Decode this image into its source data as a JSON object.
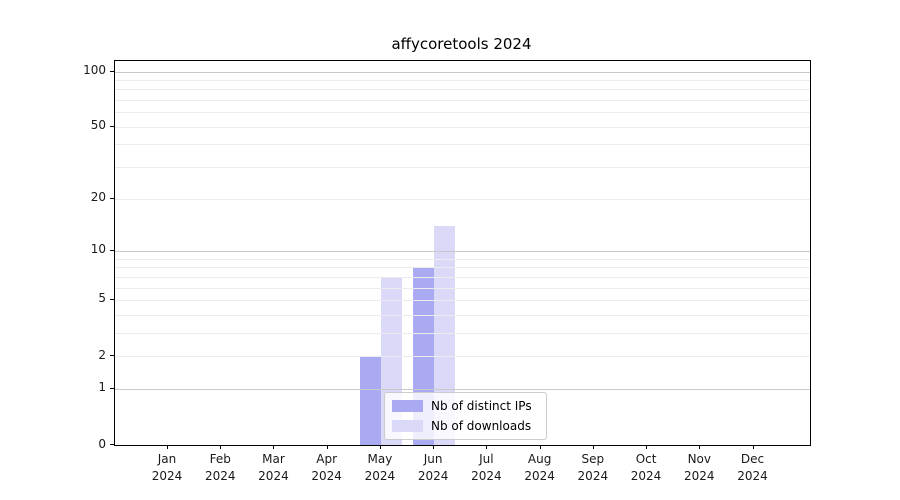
{
  "chart_data": {
    "type": "bar",
    "title": "affycoretools 2024",
    "categories": [
      "Jan",
      "Feb",
      "Mar",
      "Apr",
      "May",
      "Jun",
      "Jul",
      "Aug",
      "Sep",
      "Oct",
      "Nov",
      "Dec"
    ],
    "year_label": "2024",
    "series": [
      {
        "name": "Nb of distinct IPs",
        "color": "#aaaaf2",
        "values": [
          0,
          0,
          0,
          0,
          2,
          8,
          0,
          0,
          0,
          0,
          0,
          0
        ]
      },
      {
        "name": "Nb of downloads",
        "color": "#dadaf8",
        "values": [
          0,
          0,
          0,
          0,
          7,
          14,
          0,
          0,
          0,
          0,
          0,
          0
        ]
      }
    ],
    "y_scale": "log1p",
    "ylim": [
      0,
      114
    ],
    "y_ticks": [
      0,
      1,
      2,
      5,
      10,
      20,
      50,
      100
    ],
    "y_major_gridlines": [
      1,
      10,
      100
    ],
    "y_minor_gridlines": [
      2,
      3,
      4,
      5,
      6,
      7,
      8,
      9,
      20,
      30,
      40,
      50,
      60,
      70,
      80,
      90
    ],
    "grid": true,
    "legend_position": "lower center"
  }
}
